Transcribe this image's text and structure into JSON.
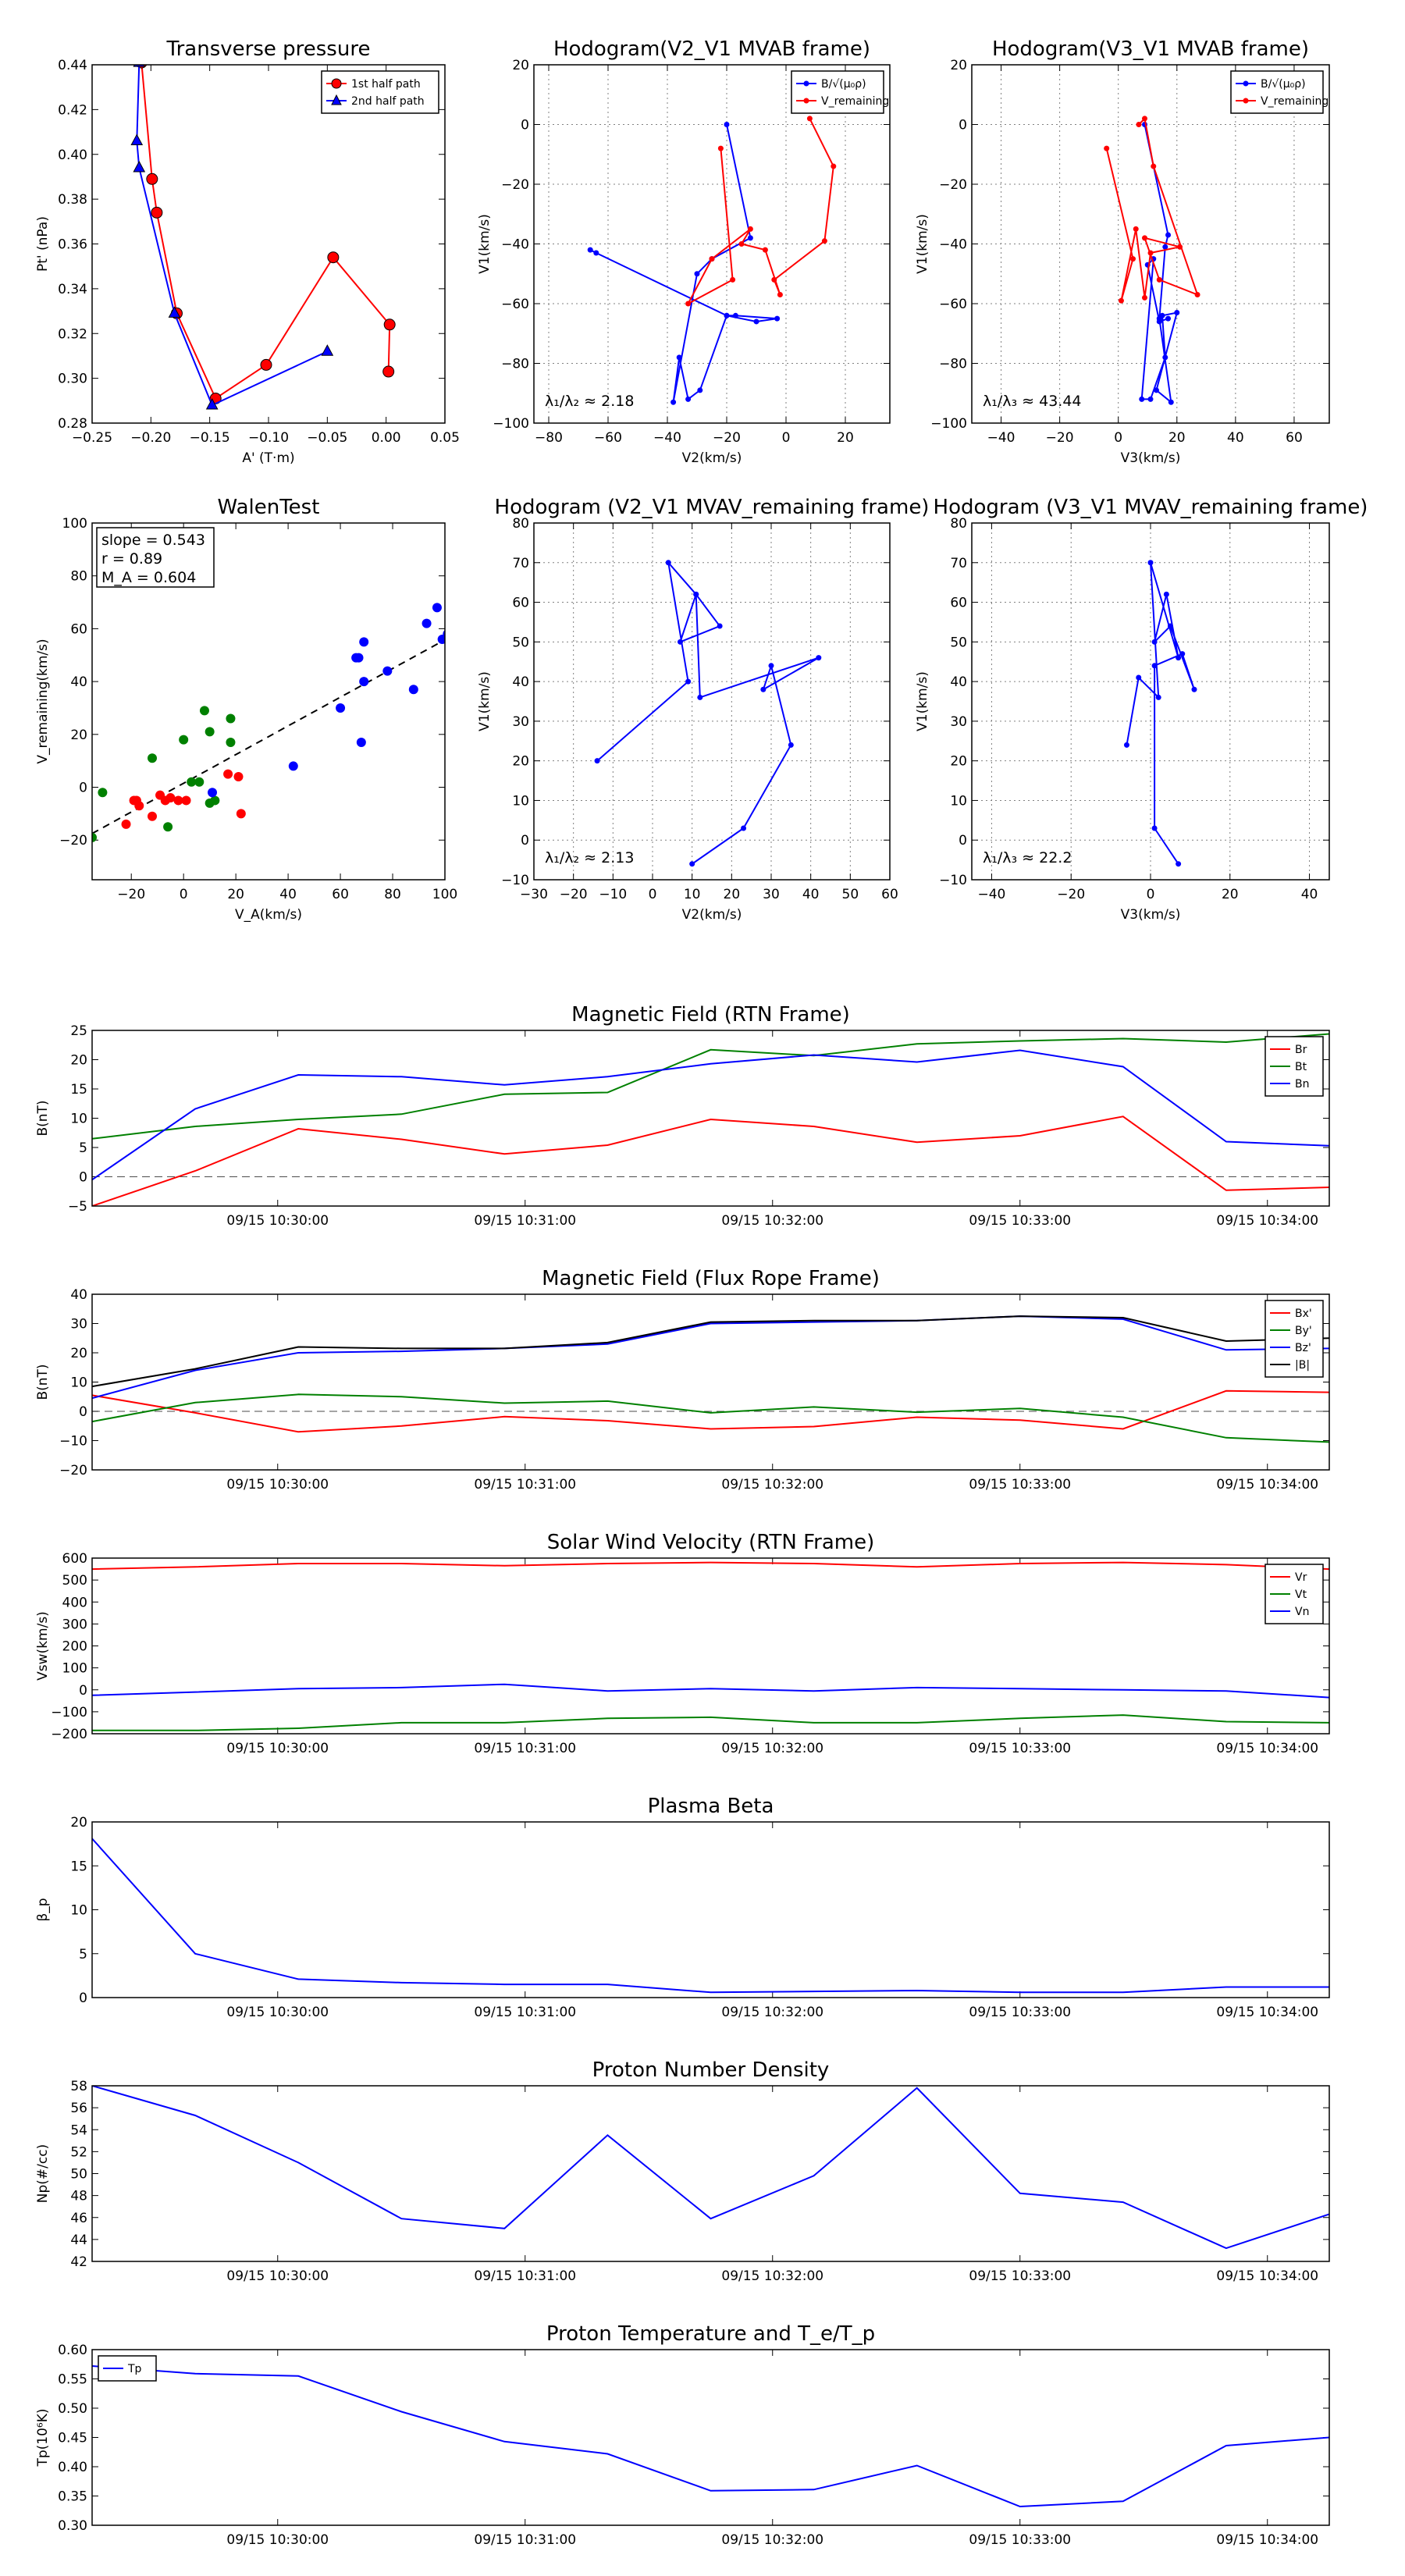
{
  "figure": {
    "xtick_labels": [
      "09/15 10:30:00",
      "09/15 10:31:00",
      "09/15 10:32:00",
      "09/15 10:33:00",
      "09/15 10:34:00"
    ]
  },
  "colors": {
    "red": "#ff0000",
    "green": "#008000",
    "blue": "#0000ff",
    "black": "#000000",
    "grid": "#808080"
  },
  "chart_data": [
    {
      "id": "transverse-pressure",
      "type": "line",
      "title": "Transverse pressure",
      "xlabel": "A' (T·m)",
      "ylabel": "Pt' (nPa)",
      "xlim": [
        -0.25,
        0.05
      ],
      "ylim": [
        0.28,
        0.44
      ],
      "xticks": [
        -0.25,
        -0.2,
        -0.15,
        -0.1,
        -0.05,
        0.0,
        0.05
      ],
      "xtick_labels": [
        "−0.25",
        "−0.20",
        "−0.15",
        "−0.10",
        "−0.05",
        "0.00",
        "0.05"
      ],
      "yticks": [
        0.28,
        0.3,
        0.32,
        0.34,
        0.36,
        0.38,
        0.4,
        0.42,
        0.44
      ],
      "ytick_labels": [
        "0.28",
        "0.30",
        "0.32",
        "0.34",
        "0.36",
        "0.38",
        "0.40",
        "0.42",
        "0.44"
      ],
      "grid": false,
      "legend": "top-right",
      "series": [
        {
          "name": "1st half path",
          "color": "red",
          "marker": "circle",
          "x": [
            -0.208,
            -0.199,
            -0.195,
            -0.178,
            -0.145,
            -0.102,
            -0.045,
            0.003,
            0.002
          ],
          "y": [
            0.441,
            0.389,
            0.374,
            0.329,
            0.291,
            0.306,
            0.354,
            0.324,
            0.303
          ]
        },
        {
          "name": "2nd half path",
          "color": "blue",
          "marker": "triangle",
          "x": [
            -0.21,
            -0.212,
            -0.21,
            -0.18,
            -0.148,
            -0.05
          ],
          "y": [
            0.441,
            0.406,
            0.394,
            0.329,
            0.288,
            0.312
          ]
        }
      ]
    },
    {
      "id": "hodogram-v2v1-mvab",
      "type": "line",
      "title": "Hodogram(V2_V1 MVAB frame)",
      "xlabel": "V2(km/s)",
      "ylabel": "V1(km/s)",
      "xlim": [
        -85,
        35
      ],
      "ylim": [
        -100,
        20
      ],
      "xticks": [
        -80,
        -60,
        -40,
        -20,
        0,
        20
      ],
      "xtick_labels": [
        "−80",
        "−60",
        "−40",
        "−20",
        "0",
        "20"
      ],
      "yticks": [
        -100,
        -80,
        -60,
        -40,
        -20,
        0,
        20
      ],
      "ytick_labels": [
        "−100",
        "−80",
        "−60",
        "−40",
        "−20",
        "0",
        "20"
      ],
      "grid": true,
      "legend": "top-right",
      "annotation": "λ₁/λ₂ ≈ 2.18",
      "series": [
        {
          "name": "B/√(μ₀ρ)",
          "color": "blue",
          "marker": "dot",
          "x": [
            -20,
            -12,
            -25,
            -30,
            -38,
            -36,
            -33,
            -29,
            -20,
            -10,
            -3,
            -17,
            -20,
            -64,
            -66
          ],
          "y": [
            0,
            -38,
            -45,
            -50,
            -93,
            -78,
            -92,
            -89,
            -64,
            -66,
            -65,
            -64,
            -64,
            -43,
            -42
          ]
        },
        {
          "name": "V_remaining",
          "color": "red",
          "marker": "dot",
          "x": [
            -22,
            -18,
            -33,
            -25,
            -12,
            -15,
            -7,
            -2,
            -4,
            13,
            16,
            8
          ],
          "y": [
            -8,
            -52,
            -60,
            -45,
            -35,
            -40,
            -42,
            -57,
            -52,
            -39,
            -14,
            2
          ]
        }
      ]
    },
    {
      "id": "hodogram-v3v1-mvab",
      "type": "line",
      "title": "Hodogram(V3_V1 MVAB frame)",
      "xlabel": "V3(km/s)",
      "ylabel": "V1(km/s)",
      "xlim": [
        -50,
        72
      ],
      "ylim": [
        -100,
        20
      ],
      "xticks": [
        -40,
        -20,
        0,
        20,
        40,
        60
      ],
      "xtick_labels": [
        "−40",
        "−20",
        "0",
        "20",
        "40",
        "60"
      ],
      "yticks": [
        -100,
        -80,
        -60,
        -40,
        -20,
        0,
        20
      ],
      "ytick_labels": [
        "−100",
        "−80",
        "−60",
        "−40",
        "−20",
        "0",
        "20"
      ],
      "grid": true,
      "legend": "top-right",
      "annotation": "λ₁/λ₃ ≈ 43.44",
      "series": [
        {
          "name": "B/√(μ₀ρ)",
          "color": "blue",
          "marker": "dot",
          "x": [
            9,
            17,
            16,
            14,
            18,
            13,
            20,
            15,
            16,
            11,
            8,
            12,
            10,
            14,
            17
          ],
          "y": [
            0,
            -37,
            -41,
            -65,
            -93,
            -89,
            -63,
            -64,
            -78,
            -92,
            -92,
            -45,
            -47,
            -66,
            -65
          ]
        },
        {
          "name": "V_remaining",
          "color": "red",
          "marker": "dot",
          "x": [
            -4,
            5,
            1,
            6,
            9,
            11,
            21,
            9,
            14,
            27,
            12,
            9,
            7
          ],
          "y": [
            -8,
            -45,
            -59,
            -35,
            -58,
            -43,
            -41,
            -38,
            -52,
            -57,
            -14,
            2,
            0
          ]
        }
      ]
    },
    {
      "id": "walen-test",
      "type": "scatter",
      "title": "WalenTest",
      "xlabel": "V_A(km/s)",
      "ylabel": "V_remaining(km/s)",
      "xlim": [
        -35,
        100
      ],
      "ylim": [
        -35,
        100
      ],
      "xticks": [
        -20,
        0,
        20,
        40,
        60,
        80,
        100
      ],
      "xtick_labels": [
        "−20",
        "0",
        "20",
        "40",
        "60",
        "80",
        "100"
      ],
      "yticks": [
        -20,
        0,
        20,
        40,
        60,
        80,
        100
      ],
      "ytick_labels": [
        "−20",
        "0",
        "20",
        "40",
        "60",
        "80",
        "100"
      ],
      "grid": false,
      "stats": [
        "slope = 0.543",
        "r = 0.89",
        "M_A = 0.604"
      ],
      "fit": {
        "slope": 0.543,
        "intercept": 1.5
      },
      "series": [
        {
          "name": "red",
          "color": "red",
          "x": [
            -19,
            -12,
            -7,
            -9,
            -5,
            -2,
            1,
            17,
            21,
            22,
            -22,
            -17,
            -18
          ],
          "y": [
            -5,
            -11,
            -5,
            -3,
            -4,
            -5,
            -5,
            5,
            4,
            -10,
            -14,
            -7,
            -5
          ]
        },
        {
          "name": "green",
          "color": "green",
          "x": [
            -31,
            -35,
            -12,
            0,
            -6,
            3,
            6,
            8,
            10,
            10,
            18,
            18,
            12
          ],
          "y": [
            -2,
            -19,
            11,
            18,
            -15,
            2,
            2,
            29,
            21,
            -6,
            26,
            17,
            -5
          ]
        },
        {
          "name": "blue",
          "color": "blue",
          "x": [
            42,
            66,
            67,
            69,
            69,
            68,
            60,
            78,
            88,
            93,
            97,
            99,
            101,
            11
          ],
          "y": [
            8,
            49,
            49,
            55,
            40,
            17,
            30,
            44,
            37,
            62,
            68,
            56,
            58,
            -2
          ]
        }
      ]
    },
    {
      "id": "hodogram-v2v1-mvav",
      "type": "line",
      "title": "Hodogram (V2_V1 MVAV_remaining frame)",
      "xlabel": "V2(km/s)",
      "ylabel": "V1(km/s)",
      "xlim": [
        -30,
        60
      ],
      "ylim": [
        -10,
        80
      ],
      "xticks": [
        -30,
        -20,
        -10,
        0,
        10,
        20,
        30,
        40,
        50,
        60
      ],
      "xtick_labels": [
        "−30",
        "−20",
        "−10",
        "0",
        "10",
        "20",
        "30",
        "40",
        "50",
        "60"
      ],
      "yticks": [
        -10,
        0,
        10,
        20,
        30,
        40,
        50,
        60,
        70,
        80
      ],
      "ytick_labels": [
        "−10",
        "0",
        "10",
        "20",
        "30",
        "40",
        "50",
        "60",
        "70",
        "80"
      ],
      "grid": true,
      "annotation": "λ₁/λ₂ ≈ 2.13",
      "series": [
        {
          "name": "V_remaining",
          "color": "blue",
          "marker": "dot",
          "x": [
            -14,
            9,
            4,
            11,
            17,
            7,
            11,
            12,
            42,
            28,
            30,
            35,
            23,
            10
          ],
          "y": [
            20,
            40,
            70,
            62,
            54,
            50,
            62,
            36,
            46,
            38,
            44,
            24,
            3,
            -6
          ]
        }
      ]
    },
    {
      "id": "hodogram-v3v1-mvav",
      "type": "line",
      "title": "Hodogram (V3_V1 MVAV_remaining frame)",
      "xlabel": "V3(km/s)",
      "ylabel": "V1(km/s)",
      "xlim": [
        -45,
        45
      ],
      "ylim": [
        -10,
        80
      ],
      "xticks": [
        -40,
        -20,
        0,
        20,
        40
      ],
      "xtick_labels": [
        "−40",
        "−20",
        "0",
        "20",
        "40"
      ],
      "yticks": [
        -10,
        0,
        10,
        20,
        30,
        40,
        50,
        60,
        70,
        80
      ],
      "ytick_labels": [
        "−10",
        "0",
        "10",
        "20",
        "30",
        "40",
        "50",
        "60",
        "70",
        "80"
      ],
      "grid": true,
      "annotation": "λ₁/λ₃ ≈ 22.2",
      "series": [
        {
          "name": "V_remaining",
          "color": "blue",
          "marker": "dot",
          "x": [
            -6,
            -3,
            2,
            0,
            7,
            4,
            1,
            5,
            11,
            8,
            1,
            1,
            7
          ],
          "y": [
            24,
            41,
            36,
            70,
            46,
            62,
            50,
            54,
            38,
            47,
            44,
            3,
            -6
          ]
        }
      ]
    },
    {
      "id": "magnetic-field-rtn",
      "type": "line",
      "title": "Magnetic Field (RTN Frame)",
      "xlabel": "",
      "ylabel": "B(nT)",
      "xlim": [
        0,
        12
      ],
      "ylim": [
        -5,
        25
      ],
      "yticks": [
        -5,
        0,
        5,
        10,
        15,
        20,
        25
      ],
      "ytick_labels": [
        "−5",
        "0",
        "5",
        "10",
        "15",
        "20",
        "25"
      ],
      "zero_line": true,
      "legend": "top-right",
      "series": [
        {
          "name": "Br",
          "color": "red",
          "values": [
            -5,
            1,
            8.2,
            6.4,
            3.9,
            5.4,
            9.8,
            8.6,
            5.9,
            7,
            10.3,
            -2.3,
            -1.8
          ]
        },
        {
          "name": "Bt",
          "color": "green",
          "values": [
            6.5,
            8.6,
            9.8,
            10.7,
            14.1,
            14.4,
            21.7,
            20.7,
            22.7,
            23.2,
            23.6,
            23,
            24.4
          ]
        },
        {
          "name": "Bn",
          "color": "blue",
          "values": [
            -0.5,
            11.6,
            17.4,
            17.1,
            15.7,
            17.1,
            19.3,
            20.8,
            19.6,
            21.6,
            18.8,
            6,
            5.3
          ]
        }
      ]
    },
    {
      "id": "magnetic-field-flux-rope",
      "type": "line",
      "title": "Magnetic Field (Flux Rope Frame)",
      "xlabel": "",
      "ylabel": "B(nT)",
      "xlim": [
        0,
        12
      ],
      "ylim": [
        -20,
        40
      ],
      "yticks": [
        -20,
        -10,
        0,
        10,
        20,
        30,
        40
      ],
      "ytick_labels": [
        "−20",
        "−10",
        "0",
        "10",
        "20",
        "30",
        "40"
      ],
      "zero_line": true,
      "legend": "top-right",
      "series": [
        {
          "name": "Bx'",
          "color": "red",
          "values": [
            5.5,
            -0.5,
            -7,
            -5,
            -1.8,
            -3.2,
            -6,
            -5.2,
            -2,
            -3,
            -6,
            7,
            6.5
          ]
        },
        {
          "name": "By'",
          "color": "green",
          "values": [
            -3.5,
            3,
            5.8,
            5,
            2.8,
            3.5,
            -0.5,
            1.5,
            -0.3,
            1,
            -2,
            -9,
            -10.5
          ]
        },
        {
          "name": "Bz'",
          "color": "blue",
          "values": [
            4.5,
            14,
            20,
            20.5,
            21.5,
            23,
            30,
            30.5,
            31,
            32.5,
            31.5,
            21,
            21.5
          ]
        },
        {
          "name": "|B|",
          "color": "black",
          "values": [
            8.5,
            14.5,
            22,
            21.5,
            21.5,
            23.5,
            30.5,
            31,
            31,
            32.5,
            32,
            24,
            25
          ]
        }
      ]
    },
    {
      "id": "solar-wind-velocity",
      "type": "line",
      "title": "Solar Wind Velocity (RTN Frame)",
      "xlabel": "",
      "ylabel": "Vsw(km/s)",
      "xlim": [
        0,
        12
      ],
      "ylim": [
        -200,
        600
      ],
      "yticks": [
        -200,
        -100,
        0,
        100,
        200,
        300,
        400,
        500,
        600
      ],
      "ytick_labels": [
        "−200",
        "−100",
        "0",
        "100",
        "200",
        "300",
        "400",
        "500",
        "600"
      ],
      "legend": "top-right",
      "series": [
        {
          "name": "Vr",
          "color": "red",
          "values": [
            550,
            560,
            575,
            575,
            565,
            575,
            580,
            575,
            560,
            575,
            580,
            570,
            550
          ]
        },
        {
          "name": "Vt",
          "color": "green",
          "values": [
            -185,
            -185,
            -175,
            -150,
            -150,
            -130,
            -125,
            -150,
            -150,
            -130,
            -115,
            -145,
            -150
          ]
        },
        {
          "name": "Vn",
          "color": "blue",
          "values": [
            -25,
            -10,
            5,
            10,
            25,
            -5,
            5,
            -5,
            10,
            5,
            0,
            -5,
            -35
          ]
        }
      ]
    },
    {
      "id": "plasma-beta",
      "type": "line",
      "title": "Plasma Beta",
      "xlabel": "",
      "ylabel": "β_p",
      "xlim": [
        0,
        12
      ],
      "ylim": [
        0,
        20
      ],
      "yticks": [
        0,
        5,
        10,
        15,
        20
      ],
      "ytick_labels": [
        "0",
        "5",
        "10",
        "15",
        "20"
      ],
      "series": [
        {
          "name": "beta",
          "color": "blue",
          "values": [
            18.1,
            5,
            2.1,
            1.7,
            1.5,
            1.5,
            0.6,
            0.7,
            0.8,
            0.6,
            0.6,
            1.2,
            1.2
          ]
        }
      ]
    },
    {
      "id": "proton-density",
      "type": "line",
      "title": "Proton Number Density",
      "xlabel": "",
      "ylabel": "Np(#/cc)",
      "xlim": [
        0,
        12
      ],
      "ylim": [
        42,
        58
      ],
      "yticks": [
        42,
        44,
        46,
        48,
        50,
        52,
        54,
        56,
        58
      ],
      "ytick_labels": [
        "42",
        "44",
        "46",
        "48",
        "50",
        "52",
        "54",
        "56",
        "58"
      ],
      "series": [
        {
          "name": "Np",
          "color": "blue",
          "values": [
            58,
            55.3,
            51,
            45.9,
            45,
            53.5,
            45.9,
            49.8,
            57.8,
            48.2,
            47.4,
            43.2,
            46.3
          ]
        }
      ]
    },
    {
      "id": "proton-temperature",
      "type": "line",
      "title": "Proton Temperature and T_e/T_p",
      "xlabel": "",
      "ylabel": "Tp(10⁶K)",
      "xlim": [
        0,
        12
      ],
      "ylim": [
        0.3,
        0.6
      ],
      "yticks": [
        0.3,
        0.35,
        0.4,
        0.45,
        0.5,
        0.55,
        0.6
      ],
      "ytick_labels": [
        "0.30",
        "0.35",
        "0.40",
        "0.45",
        "0.50",
        "0.55",
        "0.60"
      ],
      "legend": "top-left",
      "series": [
        {
          "name": "Tp",
          "color": "blue",
          "values": [
            0.572,
            0.559,
            0.555,
            0.494,
            0.443,
            0.422,
            0.359,
            0.361,
            0.402,
            0.332,
            0.341,
            0.436,
            0.45
          ]
        }
      ]
    }
  ]
}
